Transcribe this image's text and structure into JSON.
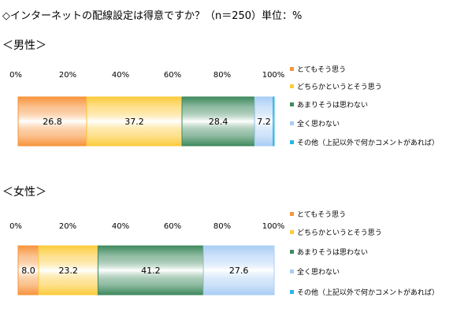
{
  "title": "◇インターネットの配線設定は得意ですか？（n＝250）単位：%",
  "chart_data": [
    {
      "type": "bar",
      "orientation": "horizontal-stacked-100",
      "title": "＜男性＞",
      "axis_ticks": [
        "0%",
        "20%",
        "40%",
        "60%",
        "80%",
        "100%"
      ],
      "xlim": [
        0,
        100
      ],
      "grid": false,
      "legend_position": "right",
      "series": [
        {
          "name": "とてもそう思う",
          "value": 26.8,
          "label": "26.8",
          "color": "#f7943c"
        },
        {
          "name": "どちらかというとそう思う",
          "value": 37.2,
          "label": "37.2",
          "color": "#fccb3c"
        },
        {
          "name": "あまりそうは思わない",
          "value": 28.4,
          "label": "28.4",
          "color": "#3f8a5e"
        },
        {
          "name": "全く思わない",
          "value": 7.2,
          "label": "7.2",
          "color": "#a9cdf5"
        },
        {
          "name": "その他（上記以外で何かコメントがあれば）",
          "value": 0.4,
          "label": "",
          "color": "#2cb5e2"
        }
      ]
    },
    {
      "type": "bar",
      "orientation": "horizontal-stacked-100",
      "title": "＜女性＞",
      "axis_ticks": [
        "0%",
        "20%",
        "40%",
        "60%",
        "80%",
        "100%"
      ],
      "xlim": [
        0,
        100
      ],
      "grid": false,
      "legend_position": "right",
      "series": [
        {
          "name": "とてもそう思う",
          "value": 8.0,
          "label": "8.0",
          "color": "#f7943c"
        },
        {
          "name": "どちらかというとそう思う",
          "value": 23.2,
          "label": "23.2",
          "color": "#fccb3c"
        },
        {
          "name": "あまりそうは思わない",
          "value": 41.2,
          "label": "41.2",
          "color": "#3f8a5e"
        },
        {
          "name": "全く思わない",
          "value": 27.6,
          "label": "27.6",
          "color": "#a9cdf5"
        },
        {
          "name": "その他（上記以外で何かコメントがあれば）",
          "value": 0,
          "label": "",
          "color": "#2cb5e2"
        }
      ]
    }
  ]
}
